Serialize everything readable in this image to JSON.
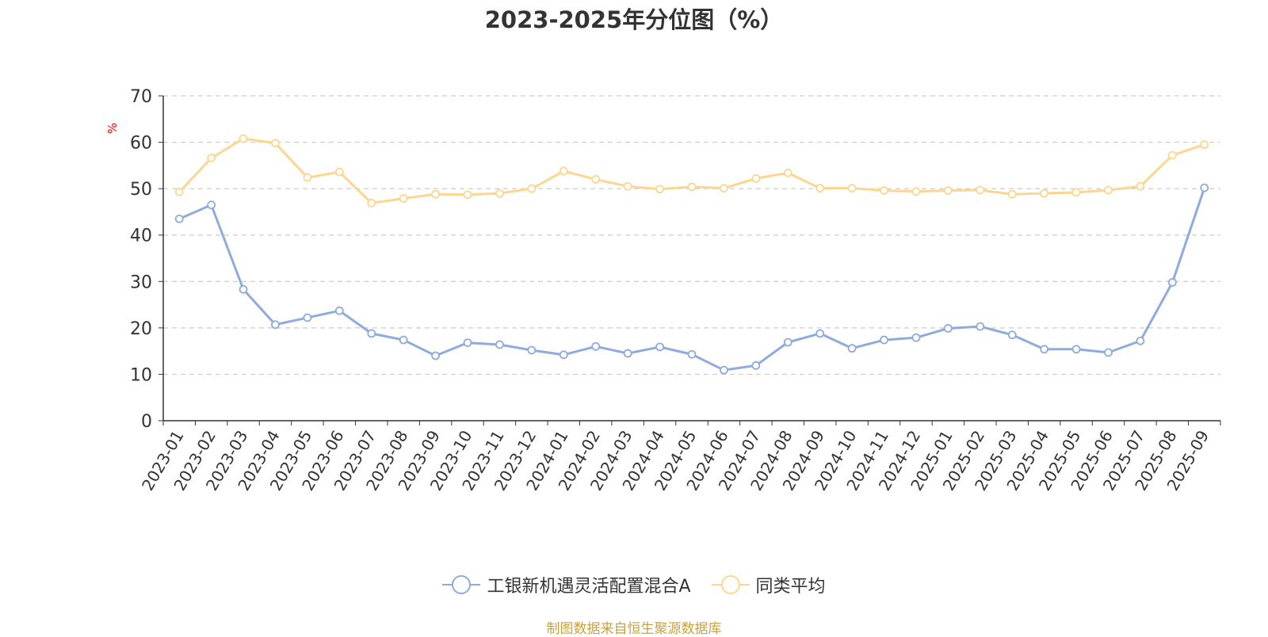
{
  "chart_data": {
    "type": "line",
    "title": "2023-2025年分位图（%）",
    "ylabel": "%",
    "xlabel": "",
    "ylim": [
      0,
      70
    ],
    "yticks": [
      0,
      10,
      20,
      30,
      40,
      50,
      60,
      70
    ],
    "grid": true,
    "legend_position": "bottom",
    "categories": [
      "2023-01",
      "2023-02",
      "2023-03",
      "2023-04",
      "2023-05",
      "2023-06",
      "2023-07",
      "2023-08",
      "2023-09",
      "2023-10",
      "2023-11",
      "2023-12",
      "2024-01",
      "2024-02",
      "2024-03",
      "2024-04",
      "2024-05",
      "2024-06",
      "2024-07",
      "2024-08",
      "2024-09",
      "2024-10",
      "2024-11",
      "2024-12",
      "2025-01",
      "2025-02",
      "2025-03",
      "2025-04",
      "2025-05",
      "2025-06",
      "2025-07",
      "2025-08",
      "2025-09"
    ],
    "series": [
      {
        "name": "工银新机遇灵活配置混合A",
        "color": "#8faadc",
        "values": [
          43.5,
          46.5,
          28.3,
          20.7,
          22.2,
          23.7,
          18.8,
          17.4,
          14.0,
          16.8,
          16.4,
          15.2,
          14.2,
          16.0,
          14.5,
          15.9,
          14.3,
          10.9,
          11.9,
          16.9,
          18.8,
          15.6,
          17.4,
          17.9,
          19.9,
          20.3,
          18.5,
          15.4,
          15.4,
          14.7,
          17.2,
          29.8,
          50.2
        ]
      },
      {
        "name": "同类平均",
        "color": "#fcd690",
        "values": [
          49.3,
          56.6,
          60.8,
          59.8,
          52.4,
          53.6,
          46.9,
          47.9,
          48.8,
          48.7,
          49.0,
          50.0,
          53.8,
          52.0,
          50.5,
          49.9,
          50.4,
          50.1,
          52.2,
          53.4,
          50.1,
          50.1,
          49.6,
          49.4,
          49.6,
          49.7,
          48.8,
          49.0,
          49.2,
          49.7,
          50.5,
          57.2,
          59.5
        ]
      }
    ],
    "source_note": "制图数据来自恒生聚源数据库"
  }
}
